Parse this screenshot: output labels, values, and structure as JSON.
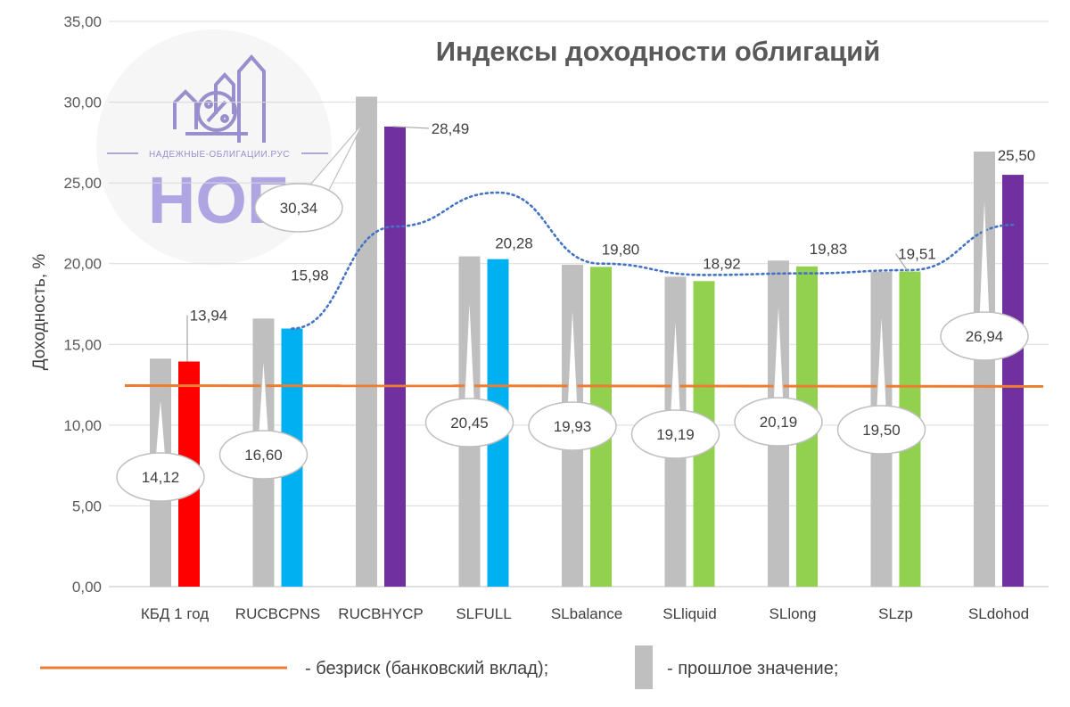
{
  "chart_data": {
    "type": "bar",
    "title": "Индексы доходности облигаций",
    "ylabel": "Доходность, %",
    "ylim": [
      0,
      35
    ],
    "yticks": [
      "0,00",
      "5,00",
      "10,00",
      "15,00",
      "20,00",
      "25,00",
      "30,00",
      "35,00"
    ],
    "ytick_values": [
      0,
      5,
      10,
      15,
      20,
      25,
      30,
      35
    ],
    "grid": true,
    "categories": [
      "КБД 1 год",
      "RUCBCPNS",
      "RUCBHYCP",
      "SLFULL",
      "SLbalance",
      "SLliquid",
      "SLlong",
      "SLzp",
      "SLdohod"
    ],
    "series": [
      {
        "name": "прошлое значение",
        "values": [
          14.12,
          16.6,
          30.34,
          20.45,
          19.93,
          19.19,
          20.19,
          19.5,
          26.94
        ],
        "labels": [
          "14,12",
          "16,60",
          "30,34",
          "20,45",
          "19,93",
          "19,19",
          "20,19",
          "19,50",
          "26,94"
        ],
        "color": "#bfbfbf"
      },
      {
        "values": [
          13.94,
          15.98,
          28.49,
          20.28,
          19.8,
          18.92,
          19.83,
          19.51,
          25.5
        ],
        "labels": [
          "13,94",
          "15,98",
          "28,49",
          "20,28",
          "19,80",
          "18,92",
          "19,83",
          "19,51",
          "25,50"
        ],
        "colors": [
          "#ff0000",
          "#00b0f0",
          "#7030a0",
          "#00b0f0",
          "#92d050",
          "#92d050",
          "#92d050",
          "#92d050",
          "#7030a0"
        ]
      }
    ],
    "riskfree_line": {
      "name": "безриск (банковский вклад)",
      "y_start": 12.45,
      "y_end": 12.4,
      "color": "#ed7d31"
    },
    "trend_line": {
      "style": "dotted",
      "color": "#4472c4",
      "y_points": [
        15.98,
        22.3,
        24.4,
        20.0,
        19.3,
        19.4,
        19.6,
        22.4
      ]
    },
    "legend": {
      "position": "bottom",
      "items": [
        {
          "label": "- безриск (банковский вклад);",
          "swatch": "line",
          "color": "#ed7d31"
        },
        {
          "label": "- прошлое значение;",
          "swatch": "box",
          "color": "#bfbfbf"
        }
      ]
    }
  },
  "watermark": {
    "site": "НАДЕЖНЫЕ-ОБЛИГАЦИИ.РУС",
    "mark": "НОБ",
    "icon": "percent-house-arrows-icon",
    "color": "#a89ce0"
  }
}
